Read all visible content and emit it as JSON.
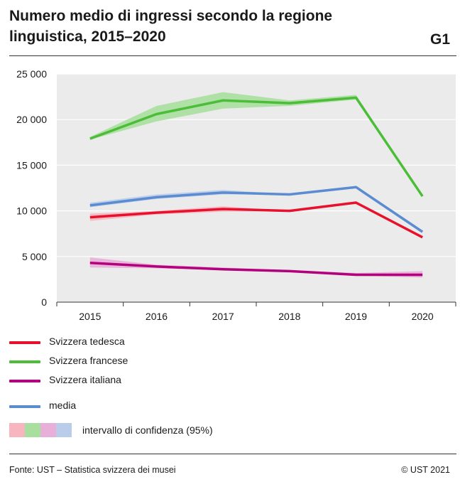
{
  "title": "Numero medio di ingressi secondo la regione linguistica, 2015–2020",
  "chart_code": "G1",
  "footer": {
    "source": "Fonte: UST – Statistica svizzera dei musei",
    "copyright": "© UST 2021"
  },
  "legend": {
    "ci_label": "intervallo di confidenza (95%)",
    "ci_colors": [
      "#f7b6bf",
      "#a8df9e",
      "#e8b0d8",
      "#b9cdea"
    ]
  },
  "chart_data": {
    "type": "line",
    "x": [
      "2015",
      "2016",
      "2017",
      "2018",
      "2019",
      "2020"
    ],
    "ylim": [
      0,
      25000
    ],
    "yticks": [
      0,
      5000,
      10000,
      15000,
      20000,
      25000
    ],
    "ytick_labels": [
      "0",
      "5 000",
      "10 000",
      "15 000",
      "20 000",
      "25 000"
    ],
    "grid": true,
    "series": [
      {
        "name": "Svizzera tedesca",
        "color": "#e8112d",
        "band_color": "#f7b6bf",
        "values": [
          9300,
          9800,
          10200,
          10000,
          10900,
          7100
        ],
        "lower": [
          8900,
          9600,
          9900,
          10000,
          10900,
          7100
        ],
        "upper": [
          9700,
          10000,
          10500,
          10000,
          10900,
          7100
        ]
      },
      {
        "name": "Svizzera francese",
        "color": "#4cbd38",
        "band_color": "#a8df9e",
        "values": [
          17900,
          20600,
          22100,
          21800,
          22400,
          11600
        ],
        "lower": [
          17800,
          19800,
          21200,
          21500,
          22200,
          11600
        ],
        "upper": [
          18100,
          21500,
          23000,
          22100,
          22700,
          11600
        ]
      },
      {
        "name": "Svizzera italiana",
        "color": "#b3007d",
        "band_color": "#e8b0d8",
        "values": [
          4300,
          3900,
          3600,
          3400,
          3000,
          3000
        ],
        "lower": [
          3800,
          3700,
          3500,
          3400,
          2900,
          2700
        ],
        "upper": [
          4900,
          4100,
          3800,
          3500,
          3200,
          3400
        ]
      },
      {
        "name": "media",
        "color": "#5b8bd1",
        "band_color": "#b9cdea",
        "values": [
          10600,
          11500,
          12000,
          11800,
          12600,
          7700
        ],
        "lower": [
          10400,
          11300,
          11800,
          11800,
          12600,
          7700
        ],
        "upper": [
          10900,
          11800,
          12300,
          11800,
          12600,
          7700
        ]
      }
    ]
  }
}
